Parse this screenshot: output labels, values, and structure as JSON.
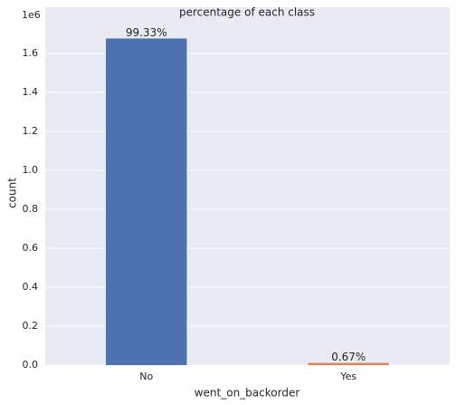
{
  "chart_data": {
    "type": "bar",
    "title": "percentage of each class",
    "x_label": "went_on_backorder",
    "y_label": "count",
    "y_offset_label": "1e6",
    "categories": [
      "No",
      "Yes"
    ],
    "values": [
      1676567,
      11293
    ],
    "value_labels": [
      "99.33%",
      "0.67%"
    ],
    "colors": [
      "#4c72b0",
      "#dd8452"
    ],
    "ylim": [
      0,
      1837000
    ],
    "yticks": [
      {
        "value": 0,
        "label": "0.0"
      },
      {
        "value": 200000,
        "label": "0.2"
      },
      {
        "value": 400000,
        "label": "0.4"
      },
      {
        "value": 600000,
        "label": "0.6"
      },
      {
        "value": 800000,
        "label": "0.8"
      },
      {
        "value": 1000000,
        "label": "1.0"
      },
      {
        "value": 1200000,
        "label": "1.2"
      },
      {
        "value": 1400000,
        "label": "1.4"
      },
      {
        "value": 1600000,
        "label": "1.6"
      }
    ],
    "grid": true
  }
}
